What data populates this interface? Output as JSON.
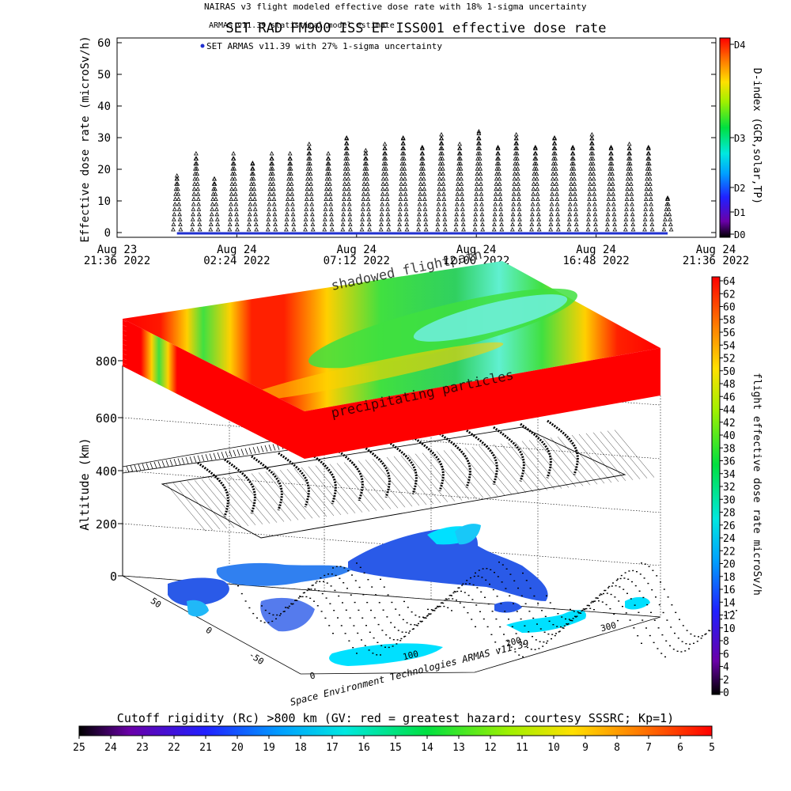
{
  "header": {
    "legend_top": "NAIRAS v3 flight modeled effective dose rate with 18% 1-sigma uncertainty",
    "legend_model": "ARMAS v11.39 statistical model estimate",
    "legend_armas": "SET ARMAS v11.39 with 27% 1-sigma uncertainty",
    "title": "SET RAD FM900 ISS EF ISS001 effective dose rate"
  },
  "top_chart": {
    "ylabel": "Effective dose rate (microSv/h)",
    "yticks": [
      "0",
      "10",
      "20",
      "30",
      "40",
      "50",
      "60"
    ],
    "xticks": [
      {
        "l1": "Aug 23",
        "l2": "21:36 2022"
      },
      {
        "l1": "Aug 24",
        "l2": "02:24 2022"
      },
      {
        "l1": "Aug 24",
        "l2": "07:12 2022"
      },
      {
        "l1": "Aug 24",
        "l2": "12:00 2022"
      },
      {
        "l1": "Aug 24",
        "l2": "16:48 2022"
      },
      {
        "l1": "Aug 24",
        "l2": "21:36 2022"
      }
    ],
    "cbar_label": "D-index (GCR,solar,TP)",
    "cbar_ticks": [
      "D0",
      "D1",
      "D2",
      "D3",
      "D4"
    ],
    "series_color": "#2030d0",
    "accent_color": "#ff2000"
  },
  "chart_data": [
    {
      "type": "scatter",
      "title": "SET RAD FM900 ISS EF ISS001 effective dose rate",
      "xlabel": "",
      "ylabel": "Effective dose rate (microSv/h)",
      "ylim": [
        0,
        60
      ],
      "xlim": [
        "2022-08-23 21:36",
        "2022-08-24 21:36"
      ],
      "series": [
        {
          "name": "NAIRAS v3 flight modeled effective dose rate with 18% 1-sigma uncertainty",
          "x": [
            "2022-08-24 00:00",
            "2022-08-24 00:46",
            "2022-08-24 01:30",
            "2022-08-24 02:16",
            "2022-08-24 03:02",
            "2022-08-24 03:48",
            "2022-08-24 04:32",
            "2022-08-24 05:18",
            "2022-08-24 06:04",
            "2022-08-24 06:48",
            "2022-08-24 07:34",
            "2022-08-24 08:20",
            "2022-08-24 09:04",
            "2022-08-24 09:50",
            "2022-08-24 10:36",
            "2022-08-24 11:20",
            "2022-08-24 12:06",
            "2022-08-24 12:52",
            "2022-08-24 13:36",
            "2022-08-24 14:22",
            "2022-08-24 15:08",
            "2022-08-24 15:52",
            "2022-08-24 16:38",
            "2022-08-24 17:24",
            "2022-08-24 18:08",
            "2022-08-24 18:54",
            "2022-08-24 19:40"
          ],
          "y": [
            18,
            25,
            17,
            25,
            22,
            25,
            25,
            28,
            25,
            30,
            26,
            28,
            30,
            27,
            31,
            28,
            32,
            27,
            31,
            27,
            30,
            27,
            31,
            27,
            28,
            27,
            11
          ]
        },
        {
          "name": "SET ARMAS v11.39 with 27% 1-sigma uncertainty",
          "x": [
            "2022-08-24 00:00",
            "2022-08-24 19:40"
          ],
          "y": [
            0,
            0
          ]
        }
      ]
    },
    {
      "type": "heatmap",
      "title": "",
      "ylabel": "Altitude (km)",
      "zlabel": "flight effective dose rate microSv/h",
      "zlim": [
        0,
        64
      ],
      "yticks": [
        "0",
        "200",
        "400",
        "600",
        "800"
      ],
      "xticks": [
        "0",
        "100",
        "200",
        "300"
      ],
      "lat_ticks": [
        "-50",
        "0",
        "50"
      ],
      "annotations": [
        "shadowed flightpath",
        "precipitating particles",
        "Space Environment Technologies ARMAS v11.39"
      ]
    }
  ],
  "right_cbar": {
    "label": "flight effective dose rate microSv/h",
    "ticks": [
      "0",
      "2",
      "4",
      "6",
      "8",
      "10",
      "12",
      "14",
      "16",
      "18",
      "20",
      "22",
      "24",
      "26",
      "28",
      "30",
      "32",
      "34",
      "36",
      "38",
      "40",
      "42",
      "44",
      "46",
      "48",
      "50",
      "52",
      "54",
      "56",
      "58",
      "60",
      "62",
      "64"
    ]
  },
  "bottom_cbar": {
    "label": "Cutoff rigidity (Rc) >800 km (GV: red = greatest hazard; courtesy SSSRC; Kp=1)",
    "ticks": [
      "25",
      "24",
      "23",
      "22",
      "21",
      "20",
      "19",
      "18",
      "17",
      "16",
      "15",
      "14",
      "13",
      "12",
      "11",
      "10",
      "9",
      "8",
      "7",
      "6",
      "5"
    ]
  },
  "panel3d": {
    "ylabel": "Altitude (km)",
    "yticks": [
      "0",
      "200",
      "400",
      "600",
      "800"
    ],
    "xticks": [
      "0",
      "100",
      "200",
      "300"
    ],
    "lat_ticks": [
      "-50",
      "0",
      "50"
    ],
    "ann_shadow": "shadowed flightpath",
    "ann_precip": "precipitating particles",
    "credit": "Space Environment Technologies ARMAS v11.39"
  }
}
